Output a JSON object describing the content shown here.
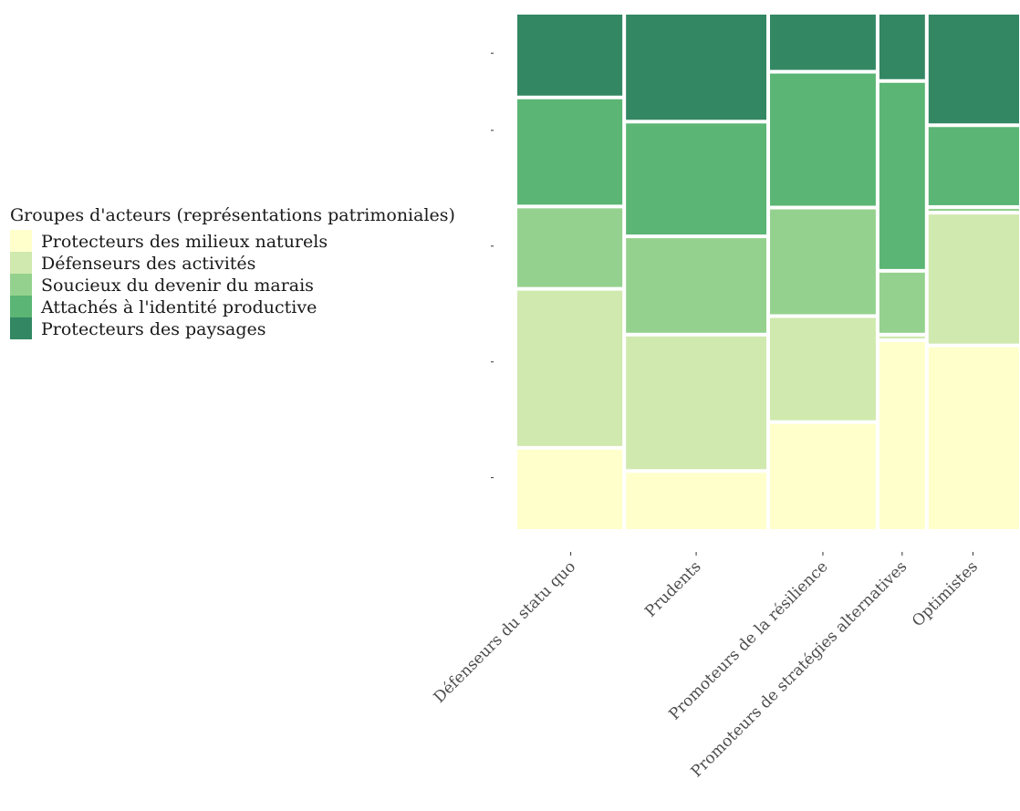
{
  "chart_data": {
    "type": "mosaic",
    "title": "",
    "xlabel": "",
    "ylabel": "",
    "legend": {
      "title": "Groupes d'acteurs (représentations patrimoniales)",
      "position": "left"
    },
    "categories": [
      "Défenseurs du statu quo",
      "Prudents",
      "Promoteurs de la résilience",
      "Promoteurs de stratégies alternatives",
      "Optimistes"
    ],
    "column_widths": [
      0.213,
      0.287,
      0.218,
      0.098,
      0.184
    ],
    "series": [
      {
        "name": "Protecteurs des milieux naturels",
        "color": "#ffffcc",
        "values": [
          0.158,
          0.113,
          0.208,
          0.367,
          0.357
        ]
      },
      {
        "name": "Défenseurs des activités",
        "color": "#d0e9ae",
        "values": [
          0.309,
          0.265,
          0.206,
          0.011,
          0.258
        ]
      },
      {
        "name": "Soucieux du devenir du marais",
        "color": "#95d18e",
        "values": [
          0.16,
          0.191,
          0.211,
          0.124,
          0.011
        ]
      },
      {
        "name": "Attachés à l'identité productive",
        "color": "#5bb574",
        "values": [
          0.212,
          0.223,
          0.264,
          0.369,
          0.159
        ]
      },
      {
        "name": "Protecteurs des paysages",
        "color": "#338763",
        "values": [
          0.161,
          0.208,
          0.111,
          0.129,
          0.215
        ]
      }
    ],
    "ylim": [
      0,
      1
    ],
    "grid": false
  }
}
